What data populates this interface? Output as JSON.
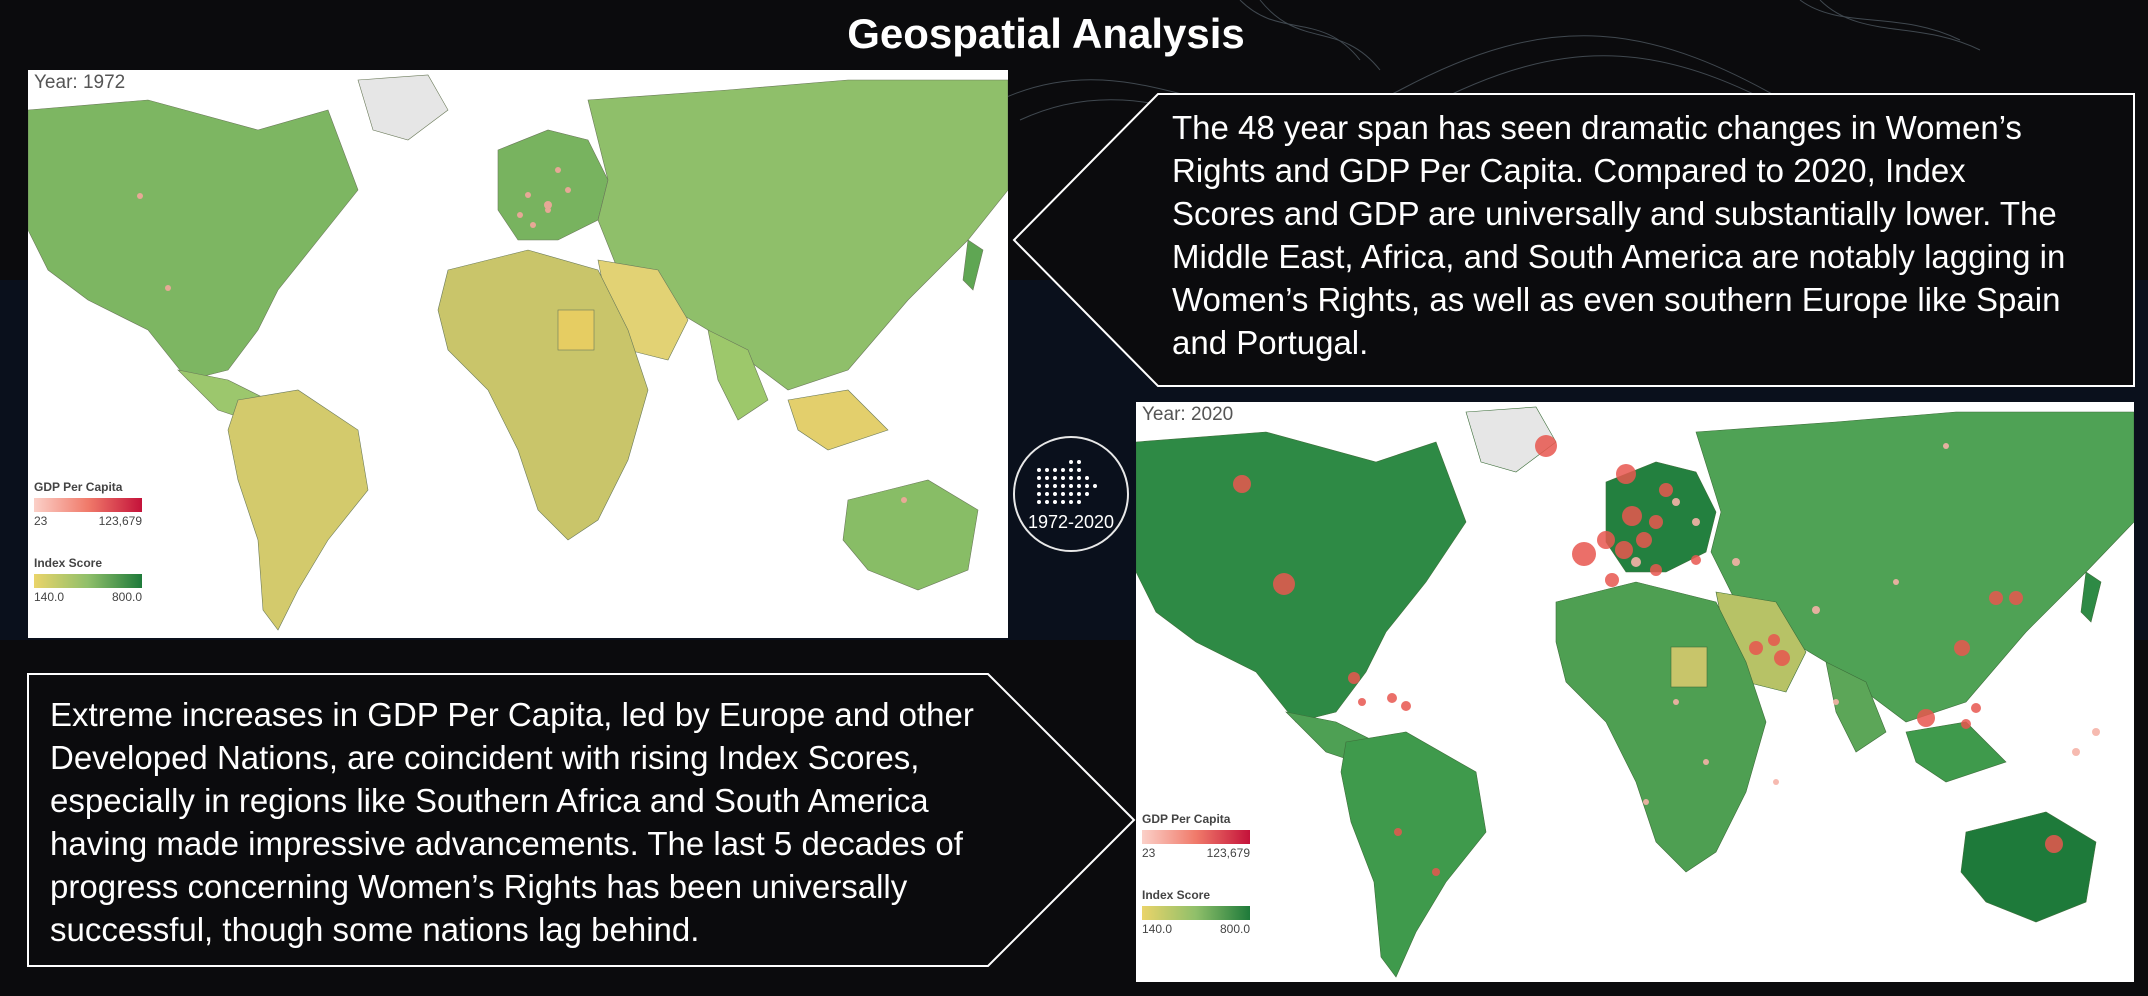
{
  "page": {
    "title": "Geospatial Analysis"
  },
  "map_1972": {
    "year_label": "Year: 1972",
    "gdp_legend": {
      "title": "GDP Per Capita",
      "min": "23",
      "max": "123,679"
    },
    "index_legend": {
      "title": "Index Score",
      "min": "140.0",
      "max": "800.0"
    }
  },
  "map_2020": {
    "year_label": "Year: 2020",
    "gdp_legend": {
      "title": "GDP Per Capita",
      "min": "23",
      "max": "123,679"
    },
    "index_legend": {
      "title": "Index Score",
      "min": "140.0",
      "max": "800.0"
    }
  },
  "range_badge": {
    "label": "1972-2020",
    "icon": "dotted-arrow-right-icon"
  },
  "callouts": {
    "top": "The 48 year span has seen dramatic changes in Women’s Rights and GDP Per Capita. Compared to 2020, Index Scores and GDP are universally and substantially lower. The Middle East, Africa, and South America are notably lagging in Women’s Rights, as well as even southern Europe like Spain and Portugal.",
    "bottom": "Extreme increases in GDP Per Capita, led by Europe and other Developed Nations, are coincident with rising Index Scores, especially in regions like Southern Africa and South America having made impressive advancements. The last 5 decades of progress concerning Women’s Rights has been universally successful, though some nations lag behind."
  },
  "colors": {
    "background": "#0b0b0d",
    "map_1972_land": "#8fbf6a",
    "map_2020_land": "#3f9a4c",
    "gdp_bubble": "#e8574f",
    "index_low": "#ead46a",
    "index_high": "#1e7a3a"
  }
}
